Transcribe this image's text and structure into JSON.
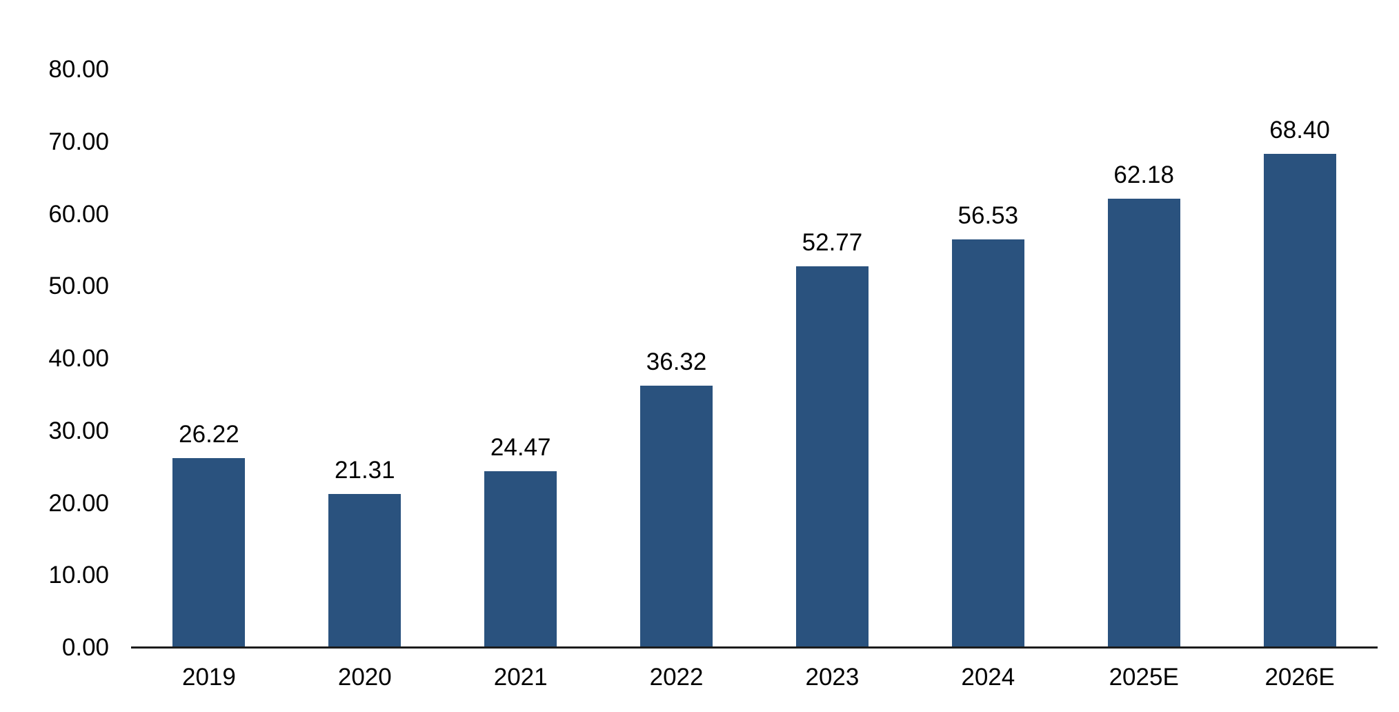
{
  "chart_data": {
    "type": "bar",
    "categories": [
      "2019",
      "2020",
      "2021",
      "2022",
      "2023",
      "2024",
      "2025E",
      "2026E"
    ],
    "values": [
      26.22,
      21.31,
      24.47,
      36.32,
      52.77,
      56.53,
      62.18,
      68.4
    ],
    "value_labels": [
      "26.22",
      "21.31",
      "24.47",
      "36.32",
      "52.77",
      "56.53",
      "62.18",
      "68.40"
    ],
    "title": "",
    "xlabel": "",
    "ylabel": "",
    "ylim": [
      0,
      80
    ],
    "ytick_step": 10,
    "yticks": [
      "0.00",
      "10.00",
      "20.00",
      "30.00",
      "40.00",
      "50.00",
      "60.00",
      "70.00",
      "80.00"
    ],
    "grid": false,
    "legend": "none",
    "bar_color": "#2A527E",
    "axis_line_color": "#1C1C1C",
    "text_color": "#000000",
    "background_color": "#FFFFFF"
  }
}
